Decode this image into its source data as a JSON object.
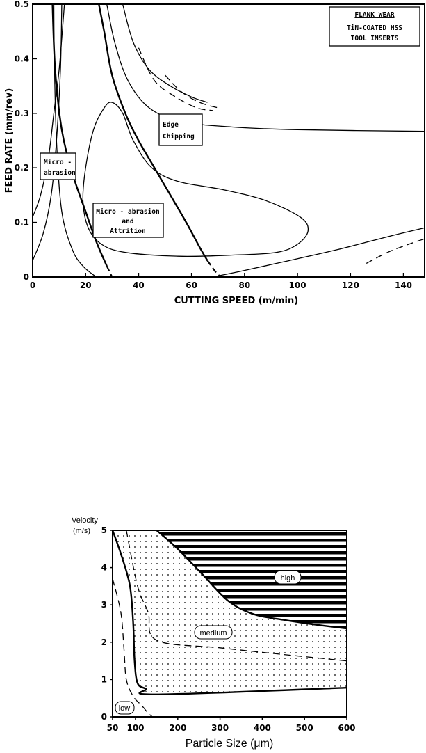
{
  "chart_data": [
    {
      "type": "line",
      "title": "FLANK WEAR",
      "subtitle_lines": [
        "TiN-COATED HSS",
        "TOOL INSERTS"
      ],
      "xlabel": "CUTTING SPEED (m/min)",
      "ylabel": "FEED RATE (mm/rev)",
      "xlim": [
        0,
        148
      ],
      "ylim": [
        0,
        0.5
      ],
      "xticks": [
        "0",
        "20",
        "40",
        "60",
        "80",
        "100",
        "120",
        "140"
      ],
      "yticks": [
        "0",
        "0.1",
        "0.2",
        "0.3",
        "0.4",
        "0.5"
      ],
      "regions": [
        {
          "label_lines": [
            "Micro -",
            "abrasion"
          ]
        },
        {
          "label_lines": [
            "Edge",
            "Chipping"
          ]
        },
        {
          "label_lines": [
            "Micro - abrasion",
            "and",
            "Attrition"
          ]
        }
      ],
      "curves": [
        {
          "style": "solid",
          "points": [
            [
              8,
              0.5
            ],
            [
              8.2,
              0.4
            ],
            [
              9,
              0.25
            ],
            [
              11,
              0.12
            ],
            [
              15,
              0.05
            ],
            [
              19,
              0.02
            ],
            [
              24,
              0
            ]
          ]
        },
        {
          "style": "solid",
          "points": [
            [
              0,
              0.03
            ],
            [
              4,
              0.08
            ],
            [
              7,
              0.15
            ],
            [
              9,
              0.25
            ],
            [
              10.5,
              0.38
            ],
            [
              11,
              0.5
            ]
          ]
        },
        {
          "style": "solid",
          "points": [
            [
              0,
              0.11
            ],
            [
              3,
              0.15
            ],
            [
              6,
              0.22
            ],
            [
              8,
              0.3
            ],
            [
              10,
              0.38
            ],
            [
              12,
              0.5
            ]
          ]
        },
        {
          "style": "bold",
          "points": [
            [
              7.5,
              0.5
            ],
            [
              8.5,
              0.38
            ],
            [
              11,
              0.27
            ],
            [
              15,
              0.19
            ],
            [
              20,
              0.12
            ],
            [
              24,
              0.065
            ],
            [
              28,
              0.02
            ]
          ]
        },
        {
          "style": "bold-dashed",
          "points": [
            [
              28,
              0.02
            ],
            [
              30,
              0
            ]
          ]
        },
        {
          "style": "bold",
          "points": [
            [
              25,
              0.5
            ],
            [
              27,
              0.45
            ],
            [
              30,
              0.37
            ],
            [
              35,
              0.3
            ],
            [
              40,
              0.25
            ],
            [
              46,
              0.2
            ],
            [
              52,
              0.15
            ],
            [
              58,
              0.1
            ],
            [
              63,
              0.055
            ],
            [
              66,
              0.03
            ]
          ]
        },
        {
          "style": "bold-dashed",
          "points": [
            [
              66,
              0.03
            ],
            [
              69,
              0.01
            ],
            [
              71,
              0
            ]
          ]
        },
        {
          "style": "solid",
          "points": [
            [
              28,
              0.5
            ],
            [
              31,
              0.43
            ],
            [
              36,
              0.36
            ],
            [
              44,
              0.31
            ],
            [
              56,
              0.285
            ],
            [
              75,
              0.275
            ],
            [
              100,
              0.27
            ],
            [
              148,
              0.267
            ]
          ]
        },
        {
          "style": "solid",
          "points": [
            [
              34,
              0.5
            ],
            [
              38,
              0.43
            ],
            [
              44,
              0.38
            ],
            [
              52,
              0.35
            ],
            [
              60,
              0.33
            ],
            [
              66,
              0.32
            ]
          ]
        },
        {
          "style": "dashed",
          "points": [
            [
              40,
              0.42
            ],
            [
              46,
              0.36
            ],
            [
              54,
              0.33
            ],
            [
              62,
              0.31
            ],
            [
              68,
              0.305
            ]
          ]
        },
        {
          "style": "dashed",
          "points": [
            [
              50,
              0.37
            ],
            [
              56,
              0.34
            ],
            [
              63,
              0.32
            ],
            [
              70,
              0.31
            ]
          ]
        },
        {
          "style": "solid",
          "closed": true,
          "points": [
            [
              30,
              0.32
            ],
            [
              27,
              0.31
            ],
            [
              23,
              0.27
            ],
            [
              20,
              0.2
            ],
            [
              19,
              0.14
            ],
            [
              21,
              0.09
            ],
            [
              26,
              0.06
            ],
            [
              35,
              0.045
            ],
            [
              55,
              0.038
            ],
            [
              75,
              0.04
            ],
            [
              92,
              0.045
            ],
            [
              100,
              0.06
            ],
            [
              104,
              0.085
            ],
            [
              101,
              0.11
            ],
            [
              88,
              0.14
            ],
            [
              72,
              0.16
            ],
            [
              55,
              0.175
            ],
            [
              45,
              0.2
            ],
            [
              38,
              0.25
            ],
            [
              34,
              0.3
            ]
          ]
        },
        {
          "style": "solid",
          "points": [
            [
              68,
              0
            ],
            [
              78,
              0.01
            ],
            [
              95,
              0.028
            ],
            [
              115,
              0.05
            ],
            [
              135,
              0.075
            ],
            [
              148,
              0.09
            ]
          ]
        },
        {
          "style": "dashed",
          "points": [
            [
              126,
              0.025
            ],
            [
              134,
              0.045
            ],
            [
              142,
              0.06
            ],
            [
              148,
              0.07
            ]
          ]
        }
      ]
    },
    {
      "type": "area",
      "xlabel": "Particle Size (μm)",
      "ylabel_lines": [
        "Velocity",
        "(m/s)"
      ],
      "xlim": [
        50,
        600
      ],
      "ylim": [
        0,
        5
      ],
      "xticks": [
        "50",
        "100",
        "200",
        "300",
        "400",
        "500",
        "600"
      ],
      "yticks": [
        "0",
        "1",
        "2",
        "3",
        "4",
        "5"
      ],
      "regions": [
        {
          "label": "low",
          "fill": "none"
        },
        {
          "label": "medium",
          "fill": "dotted"
        },
        {
          "label": "high",
          "fill": "horizontal-hatch"
        }
      ],
      "boundaries": [
        {
          "style": "solid",
          "name": "low-medium",
          "points": [
            [
              50,
              5
            ],
            [
              70,
              4.3
            ],
            [
              88,
              3.5
            ],
            [
              95,
              2.5
            ],
            [
              98,
              1.5
            ],
            [
              105,
              0.9
            ],
            [
              125,
              0.75
            ],
            [
              150,
              0.6
            ],
            [
              600,
              0.78
            ]
          ]
        },
        {
          "style": "solid",
          "name": "medium-high",
          "points": [
            [
              150,
              5
            ],
            [
              200,
              4.5
            ],
            [
              260,
              3.8
            ],
            [
              320,
              3.1
            ],
            [
              380,
              2.75
            ],
            [
              450,
              2.6
            ],
            [
              520,
              2.48
            ],
            [
              600,
              2.37
            ]
          ]
        },
        {
          "style": "dashed",
          "points": [
            [
              80,
              5
            ],
            [
              105,
              3.5
            ],
            [
              130,
              2.8
            ],
            [
              150,
              2.05
            ],
            [
              300,
              1.85
            ],
            [
              450,
              1.67
            ],
            [
              600,
              1.5
            ]
          ]
        },
        {
          "style": "dashed",
          "points": [
            [
              50,
              3.7
            ],
            [
              68,
              2.8
            ],
            [
              75,
              1.8
            ],
            [
              80,
              1.0
            ],
            [
              95,
              0.55
            ],
            [
              115,
              0.3
            ],
            [
              130,
              0.1
            ],
            [
              140,
              0
            ]
          ]
        }
      ]
    }
  ]
}
